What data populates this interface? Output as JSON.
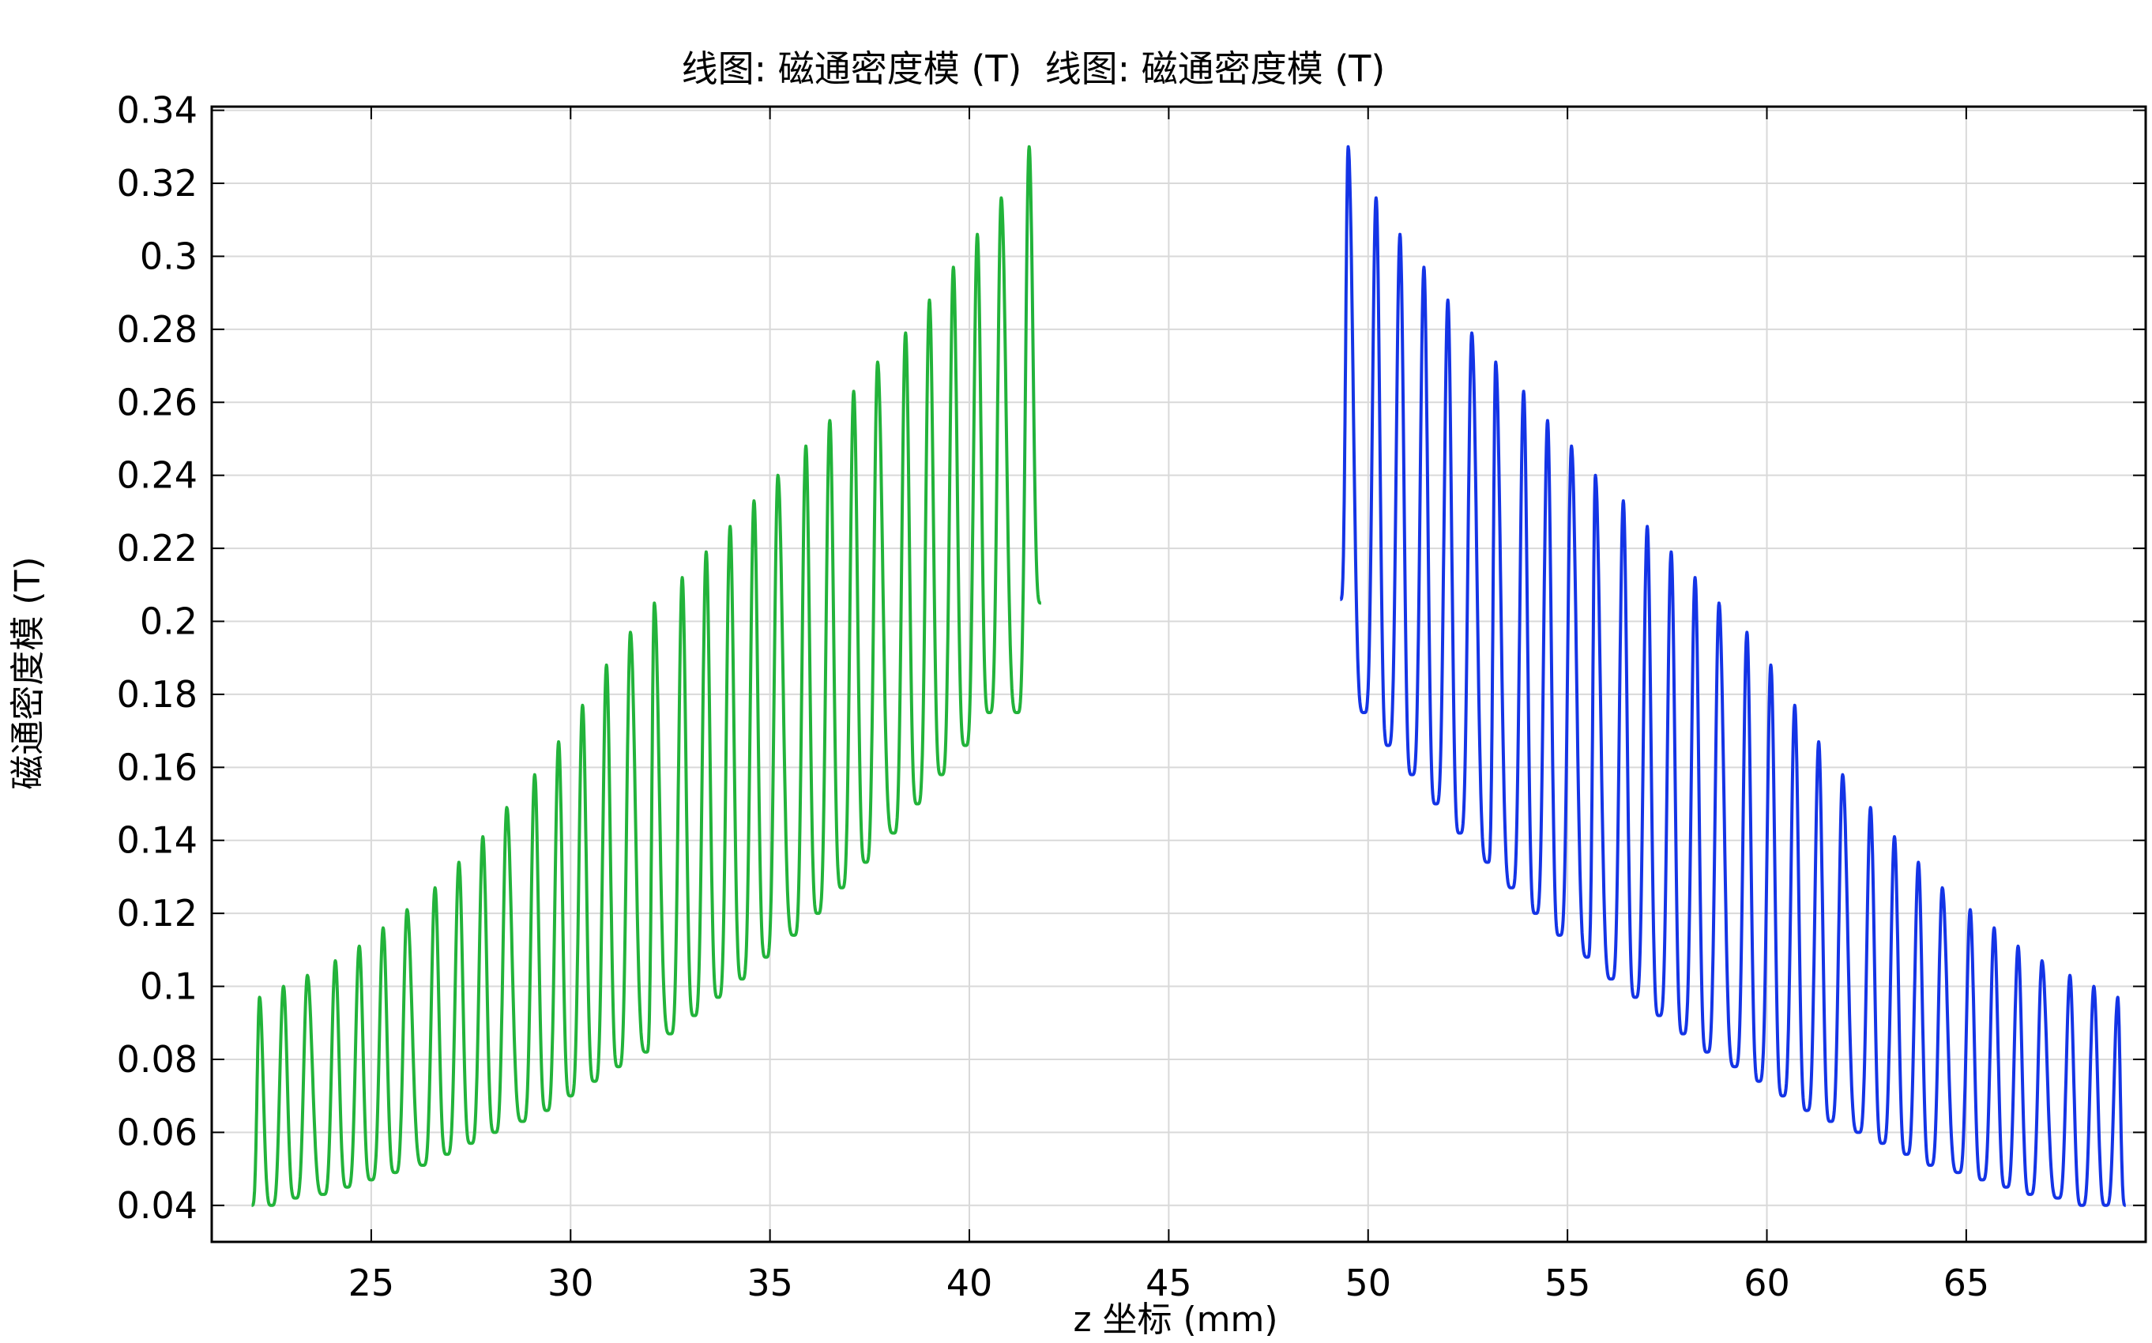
{
  "chart_data": {
    "type": "line",
    "title": "线图: 磁通密度模 (T)  线图: 磁通密度模 (T)",
    "xlabel": "z 坐标 (mm)",
    "ylabel": "磁通密度模 (T)",
    "xlim": [
      21.0,
      69.5
    ],
    "ylim": [
      0.03,
      0.341
    ],
    "x_ticks": [
      25,
      30,
      35,
      40,
      45,
      50,
      55,
      60,
      65
    ],
    "x_tick_labels": [
      "25",
      "30",
      "35",
      "40",
      "45",
      "50",
      "55",
      "60",
      "65"
    ],
    "y_ticks": [
      0.04,
      0.06,
      0.08,
      0.1,
      0.12,
      0.14,
      0.16,
      0.18,
      0.2,
      0.22,
      0.24,
      0.26,
      0.28,
      0.3,
      0.32,
      0.34
    ],
    "y_tick_labels": [
      "0.04",
      "0.06",
      "0.08",
      "0.1",
      "0.12",
      "0.14",
      "0.16",
      "0.18",
      "0.2",
      "0.22",
      "0.24",
      "0.26",
      "0.28",
      "0.3",
      "0.32",
      "0.34"
    ],
    "grid": true,
    "series": [
      {
        "color": "#22b33a",
        "start": [
          22.0,
          0.04
        ],
        "end": [
          41.8,
          0.205
        ],
        "peaks": [
          [
            22.2,
            0.097
          ],
          [
            22.8,
            0.1
          ],
          [
            23.4,
            0.103
          ],
          [
            24.1,
            0.107
          ],
          [
            24.7,
            0.111
          ],
          [
            25.3,
            0.116
          ],
          [
            25.9,
            0.121
          ],
          [
            26.6,
            0.127
          ],
          [
            27.2,
            0.134
          ],
          [
            27.8,
            0.141
          ],
          [
            28.4,
            0.149
          ],
          [
            29.1,
            0.158
          ],
          [
            29.7,
            0.167
          ],
          [
            30.3,
            0.177
          ],
          [
            30.9,
            0.188
          ],
          [
            31.5,
            0.197
          ],
          [
            32.1,
            0.205
          ],
          [
            32.8,
            0.212
          ],
          [
            33.4,
            0.219
          ],
          [
            34.0,
            0.226
          ],
          [
            34.6,
            0.233
          ],
          [
            35.2,
            0.24
          ],
          [
            35.9,
            0.248
          ],
          [
            36.5,
            0.255
          ],
          [
            37.1,
            0.263
          ],
          [
            37.7,
            0.271
          ],
          [
            38.4,
            0.279
          ],
          [
            39.0,
            0.288
          ],
          [
            39.6,
            0.297
          ],
          [
            40.2,
            0.306
          ],
          [
            40.8,
            0.316
          ],
          [
            41.5,
            0.33
          ]
        ],
        "troughs": [
          [
            22.5,
            0.04
          ],
          [
            23.1,
            0.042
          ],
          [
            23.8,
            0.043
          ],
          [
            24.4,
            0.045
          ],
          [
            25.0,
            0.047
          ],
          [
            25.6,
            0.049
          ],
          [
            26.3,
            0.051
          ],
          [
            26.9,
            0.054
          ],
          [
            27.5,
            0.057
          ],
          [
            28.1,
            0.06
          ],
          [
            28.8,
            0.063
          ],
          [
            29.4,
            0.066
          ],
          [
            30.0,
            0.07
          ],
          [
            30.6,
            0.074
          ],
          [
            31.2,
            0.078
          ],
          [
            31.9,
            0.082
          ],
          [
            32.5,
            0.087
          ],
          [
            33.1,
            0.092
          ],
          [
            33.7,
            0.097
          ],
          [
            34.3,
            0.102
          ],
          [
            34.9,
            0.108
          ],
          [
            35.6,
            0.114
          ],
          [
            36.2,
            0.12
          ],
          [
            36.8,
            0.127
          ],
          [
            37.4,
            0.134
          ],
          [
            38.1,
            0.142
          ],
          [
            38.7,
            0.15
          ],
          [
            39.3,
            0.158
          ],
          [
            39.9,
            0.166
          ],
          [
            40.5,
            0.175
          ],
          [
            41.2,
            0.175
          ]
        ]
      },
      {
        "color": "#1434e6",
        "start": [
          49.3,
          0.206
        ],
        "end": [
          69.0,
          0.04
        ],
        "peaks": [
          [
            49.5,
            0.33
          ],
          [
            50.2,
            0.316
          ],
          [
            50.8,
            0.306
          ],
          [
            51.4,
            0.297
          ],
          [
            52.0,
            0.288
          ],
          [
            52.6,
            0.279
          ],
          [
            53.2,
            0.271
          ],
          [
            53.9,
            0.263
          ],
          [
            54.5,
            0.255
          ],
          [
            55.1,
            0.248
          ],
          [
            55.7,
            0.24
          ],
          [
            56.4,
            0.233
          ],
          [
            57.0,
            0.226
          ],
          [
            57.6,
            0.219
          ],
          [
            58.2,
            0.212
          ],
          [
            58.8,
            0.205
          ],
          [
            59.5,
            0.197
          ],
          [
            60.1,
            0.188
          ],
          [
            60.7,
            0.177
          ],
          [
            61.3,
            0.167
          ],
          [
            61.9,
            0.158
          ],
          [
            62.6,
            0.149
          ],
          [
            63.2,
            0.141
          ],
          [
            63.8,
            0.134
          ],
          [
            64.4,
            0.127
          ],
          [
            65.1,
            0.121
          ],
          [
            65.7,
            0.116
          ],
          [
            66.3,
            0.111
          ],
          [
            66.9,
            0.107
          ],
          [
            67.6,
            0.103
          ],
          [
            68.2,
            0.1
          ],
          [
            68.8,
            0.097
          ]
        ],
        "troughs": [
          [
            49.9,
            0.175
          ],
          [
            50.5,
            0.166
          ],
          [
            51.1,
            0.158
          ],
          [
            51.7,
            0.15
          ],
          [
            52.3,
            0.142
          ],
          [
            53.0,
            0.134
          ],
          [
            53.6,
            0.127
          ],
          [
            54.2,
            0.12
          ],
          [
            54.8,
            0.114
          ],
          [
            55.5,
            0.108
          ],
          [
            56.1,
            0.102
          ],
          [
            56.7,
            0.097
          ],
          [
            57.3,
            0.092
          ],
          [
            57.9,
            0.087
          ],
          [
            58.5,
            0.082
          ],
          [
            59.2,
            0.078
          ],
          [
            59.8,
            0.074
          ],
          [
            60.4,
            0.07
          ],
          [
            61.0,
            0.066
          ],
          [
            61.6,
            0.063
          ],
          [
            62.3,
            0.06
          ],
          [
            62.9,
            0.057
          ],
          [
            63.5,
            0.054
          ],
          [
            64.1,
            0.051
          ],
          [
            64.8,
            0.049
          ],
          [
            65.4,
            0.047
          ],
          [
            66.0,
            0.045
          ],
          [
            66.6,
            0.043
          ],
          [
            67.3,
            0.042
          ],
          [
            67.9,
            0.04
          ],
          [
            68.5,
            0.04
          ]
        ]
      }
    ]
  }
}
